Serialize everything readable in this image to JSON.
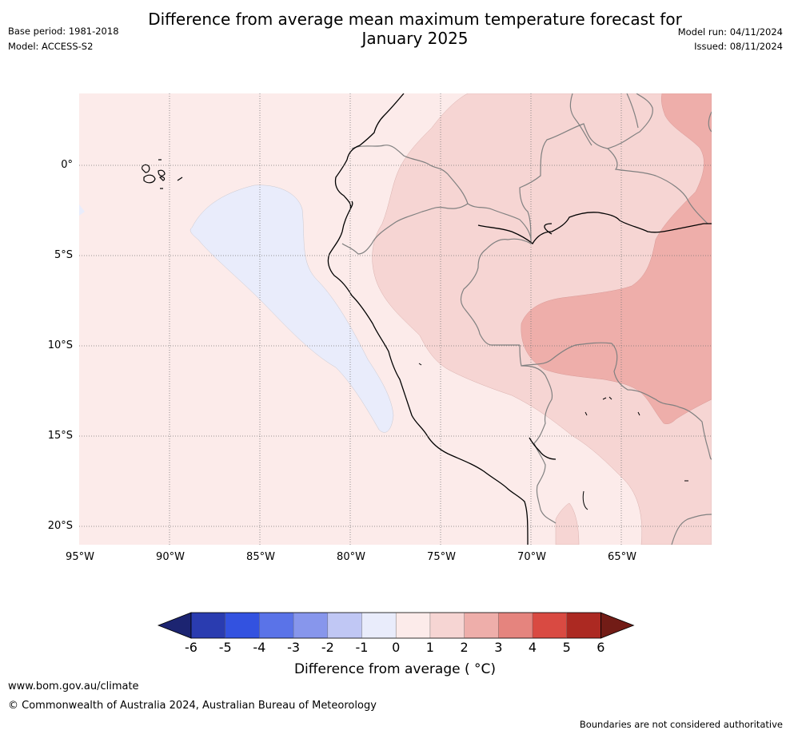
{
  "header": {
    "title_line1": "Difference from average mean maximum temperature forecast for",
    "title_line2": "January 2025",
    "base_period": "Base period: 1981-2018",
    "model": "Model: ACCESS-S2",
    "model_run": "Model run: 04/11/2024",
    "issued": "Issued: 08/11/2024"
  },
  "map": {
    "lat_labels": [
      "0°",
      "5°S",
      "10°S",
      "15°S",
      "20°S"
    ],
    "lon_labels": [
      "95°W",
      "90°W",
      "85°W",
      "80°W",
      "75°W",
      "70°W",
      "65°W"
    ],
    "land_outline_color": "#000000",
    "border_color": "#808080"
  },
  "colorbar": {
    "ticks": [
      "-6",
      "-5",
      "-4",
      "-3",
      "-2",
      "-1",
      "0",
      "1",
      "2",
      "3",
      "4",
      "5",
      "6"
    ],
    "colors": [
      "#1c2471",
      "#2a3cb0",
      "#3352e0",
      "#5a73e8",
      "#8796ec",
      "#c0c7f4",
      "#e9ecfb",
      "#fcebea",
      "#f6d5d3",
      "#eeaeaa",
      "#e5847e",
      "#d94a42",
      "#ac2922",
      "#721c16"
    ],
    "label": "Difference from average ( °C)"
  },
  "footer": {
    "website": "www.bom.gov.au/climate",
    "copyright": "© Commonwealth of Australia 2024, Australian Bureau of Meteorology",
    "disclaimer": "Boundaries are not considered authoritative"
  }
}
